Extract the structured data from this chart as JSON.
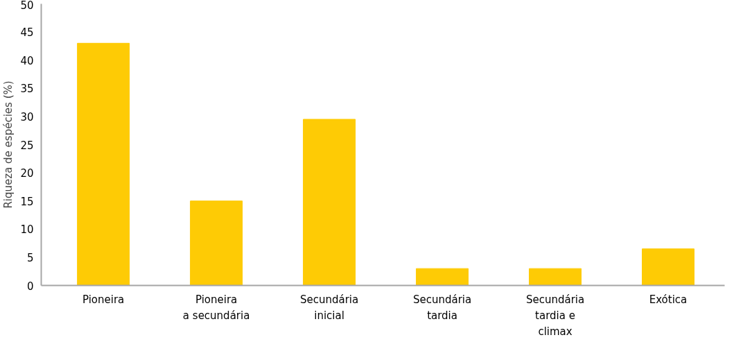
{
  "chart_data": {
    "type": "bar",
    "ylabel": "Riqueza de espécies (%)",
    "categories": [
      "Pioneira",
      "Pioneira\na secundária",
      "Secundária\ninicial",
      "Secundária\ntardia",
      "Secundária\ntardia e\nclimax",
      "Exótica"
    ],
    "values": [
      43,
      15,
      29.5,
      3,
      3,
      6.5
    ],
    "color": "#fecb05",
    "ylim": [
      0,
      50
    ],
    "yticks": [
      0,
      5,
      10,
      15,
      20,
      25,
      30,
      35,
      40,
      45,
      50
    ],
    "grid": false
  }
}
